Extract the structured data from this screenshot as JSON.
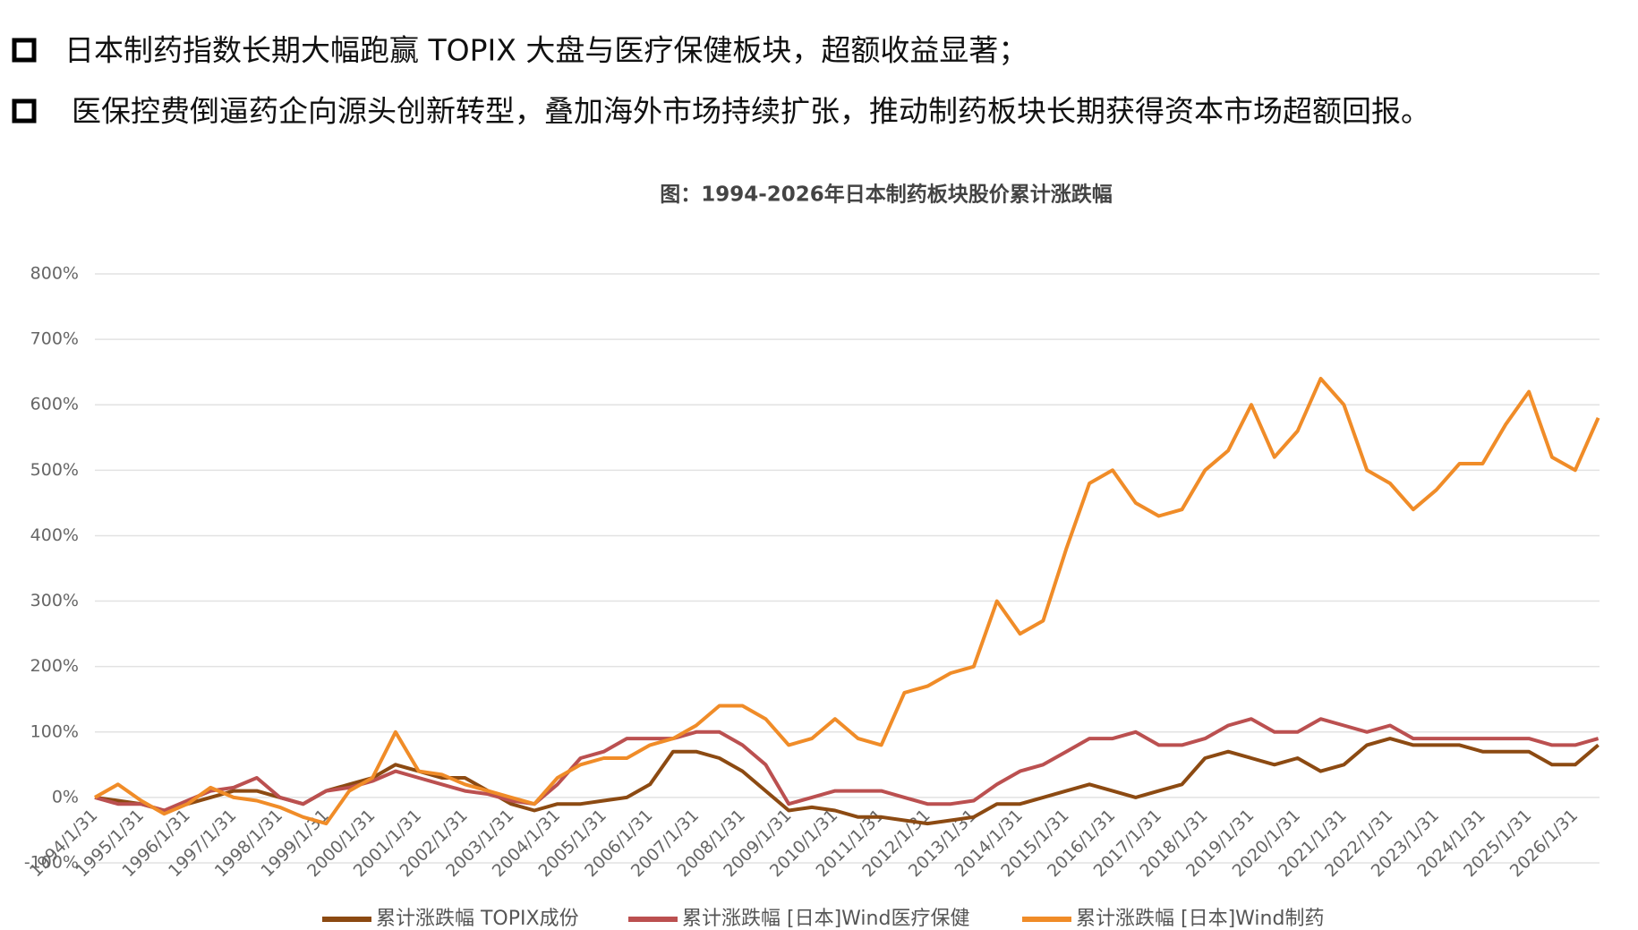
{
  "bullets": [
    "日本制药指数长期大幅跑赢 TOPIX 大盘与医疗保健板块，超额收益显著；",
    "医保控费倒逼药企向源头创新转型，叠加海外市场持续扩张，推动制药板块长期获得资本市场超额回报。"
  ],
  "chart_data": {
    "type": "line",
    "title": "图：1994-2026年日本制药板块股价累计涨跌幅",
    "categories": [
      "1994/1/31",
      null,
      "1995/1/31",
      null,
      "1996/1/31",
      null,
      "1997/1/31",
      null,
      "1998/1/31",
      null,
      "1999/1/31",
      null,
      "2000/1/31",
      null,
      "2001/1/31",
      null,
      "2002/1/31",
      null,
      "2003/1/31",
      null,
      "2004/1/31",
      null,
      "2005/1/31",
      null,
      "2006/1/31",
      null,
      "2007/1/31",
      null,
      "2008/1/31",
      null,
      "2009/1/31",
      null,
      "2010/1/31",
      null,
      "2011/1/31",
      null,
      "2012/1/31",
      null,
      "2013/1/31",
      null,
      "2014/1/31",
      null,
      "2015/1/31",
      null,
      "2016/1/31",
      null,
      "2017/1/31",
      null,
      "2018/1/31",
      null,
      "2019/1/31",
      null,
      "2020/1/31",
      null,
      "2021/1/31",
      null,
      "2022/1/31",
      null,
      "2023/1/31",
      null,
      "2024/1/31",
      null,
      "2025/1/31",
      null,
      "2026/1/31",
      null
    ],
    "series": [
      {
        "name": "累计涨跌幅 TOPIX成份",
        "color": "#8c4a12",
        "values": [
          0,
          -5,
          -10,
          -20,
          -10,
          0,
          10,
          10,
          0,
          -10,
          10,
          20,
          30,
          50,
          40,
          30,
          30,
          10,
          -10,
          -20,
          -10,
          -10,
          -5,
          0,
          20,
          70,
          70,
          60,
          40,
          10,
          -20,
          -15,
          -20,
          -30,
          -30,
          -35,
          -40,
          -35,
          -30,
          -10,
          -10,
          0,
          10,
          20,
          10,
          0,
          10,
          20,
          60,
          70,
          60,
          50,
          60,
          40,
          50,
          80,
          90,
          80,
          80,
          80,
          70,
          70,
          70,
          50,
          50,
          80
        ]
      },
      {
        "name": "累计涨跌幅 [日本]Wind医疗保健",
        "color": "#bb5050",
        "values": [
          0,
          -10,
          -10,
          -20,
          -5,
          10,
          15,
          30,
          0,
          -10,
          10,
          15,
          25,
          40,
          30,
          20,
          10,
          5,
          -5,
          -10,
          20,
          60,
          70,
          90,
          90,
          90,
          100,
          100,
          80,
          50,
          -10,
          0,
          10,
          10,
          10,
          0,
          -10,
          -10,
          -5,
          20,
          40,
          50,
          70,
          90,
          90,
          100,
          80,
          80,
          90,
          110,
          120,
          100,
          100,
          120,
          110,
          100,
          110,
          90,
          90,
          90,
          90,
          90,
          90,
          80,
          80,
          90
        ]
      },
      {
        "name": "累计涨跌幅 [日本]Wind制药",
        "color": "#f08c28",
        "values": [
          0,
          20,
          -5,
          -25,
          -10,
          15,
          0,
          -5,
          -15,
          -30,
          -40,
          10,
          30,
          100,
          40,
          35,
          20,
          10,
          0,
          -10,
          30,
          50,
          60,
          60,
          80,
          90,
          110,
          140,
          140,
          120,
          80,
          90,
          120,
          90,
          80,
          160,
          170,
          190,
          200,
          300,
          250,
          270,
          380,
          480,
          500,
          450,
          430,
          440,
          500,
          530,
          600,
          520,
          560,
          640,
          600,
          500,
          480,
          440,
          470,
          510,
          510,
          570,
          620,
          520,
          500,
          580
        ]
      }
    ],
    "ylim": [
      -100,
      800
    ],
    "yticks": [
      {
        "value": -100,
        "label": "-100%"
      },
      {
        "value": 0,
        "label": "0%"
      },
      {
        "value": 100,
        "label": "100%"
      },
      {
        "value": 200,
        "label": "200%"
      },
      {
        "value": 300,
        "label": "300%"
      },
      {
        "value": 400,
        "label": "400%"
      },
      {
        "value": 500,
        "label": "500%"
      },
      {
        "value": 600,
        "label": "600%"
      },
      {
        "value": 700,
        "label": "700%"
      },
      {
        "value": 800,
        "label": "800%"
      }
    ],
    "grid": true
  }
}
